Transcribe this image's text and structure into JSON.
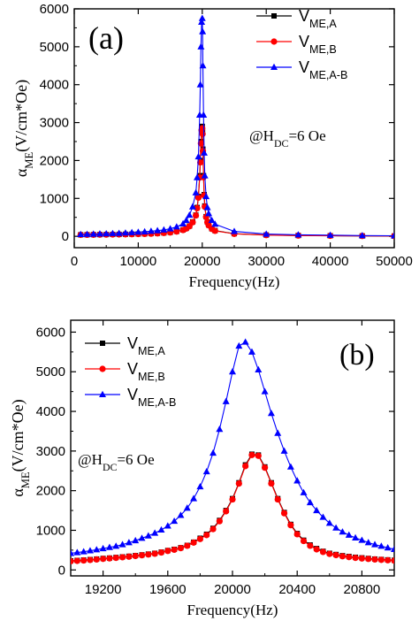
{
  "chart_data": [
    {
      "type": "line",
      "panel_label": "(a)",
      "xlabel": "Frequency(Hz)",
      "ylabel": "α_ME(V/cm*Oe)",
      "xlim": [
        0,
        50000
      ],
      "ylim": [
        -300,
        6000
      ],
      "xticks": [
        0,
        10000,
        20000,
        30000,
        40000,
        50000
      ],
      "yticks": [
        0,
        1000,
        2000,
        3000,
        4000,
        5000,
        6000
      ],
      "annotation": "@H_DC=6 Oe",
      "legend_position": "top-right",
      "series": [
        {
          "name": "V_ME,A",
          "color": "#000000",
          "marker": "square",
          "x": [
            1000,
            2000,
            3000,
            4000,
            5000,
            6000,
            7000,
            8000,
            9000,
            10000,
            11000,
            12000,
            13000,
            14000,
            15000,
            16000,
            17000,
            17500,
            18000,
            18500,
            19000,
            19200,
            19400,
            19600,
            19700,
            19800,
            19900,
            20000,
            20050,
            20100,
            20200,
            20300,
            20400,
            20600,
            20800,
            21000,
            21500,
            22000,
            25000,
            30000,
            35000,
            40000,
            45000,
            50000
          ],
          "y": [
            40,
            42,
            44,
            46,
            48,
            50,
            52,
            55,
            58,
            62,
            66,
            72,
            80,
            90,
            105,
            130,
            170,
            210,
            270,
            380,
            560,
            760,
            1050,
            1600,
            2000,
            2500,
            2850,
            2900,
            2750,
            2300,
            1600,
            1100,
            800,
            520,
            380,
            300,
            200,
            150,
            70,
            35,
            22,
            15,
            10,
            8
          ]
        },
        {
          "name": "V_ME,B",
          "color": "#ff0000",
          "marker": "circle",
          "x": [
            1000,
            2000,
            3000,
            4000,
            5000,
            6000,
            7000,
            8000,
            9000,
            10000,
            11000,
            12000,
            13000,
            14000,
            15000,
            16000,
            17000,
            17500,
            18000,
            18500,
            19000,
            19200,
            19400,
            19600,
            19700,
            19800,
            19900,
            20000,
            20050,
            20100,
            20200,
            20300,
            20400,
            20600,
            20800,
            21000,
            21500,
            22000,
            25000,
            30000,
            35000,
            40000,
            45000,
            50000
          ],
          "y": [
            38,
            40,
            42,
            44,
            46,
            48,
            50,
            53,
            56,
            60,
            64,
            70,
            78,
            88,
            102,
            126,
            165,
            205,
            265,
            370,
            550,
            740,
            1020,
            1550,
            1950,
            2450,
            2800,
            2850,
            2700,
            2250,
            1560,
            1080,
            780,
            510,
            370,
            290,
            195,
            145,
            65,
            32,
            20,
            14,
            9,
            7
          ]
        },
        {
          "name": "V_ME,A-B",
          "color": "#0000ff",
          "marker": "triangle",
          "x": [
            1000,
            2000,
            3000,
            4000,
            5000,
            6000,
            7000,
            8000,
            9000,
            10000,
            11000,
            12000,
            13000,
            14000,
            15000,
            16000,
            17000,
            17500,
            18000,
            18500,
            19000,
            19200,
            19400,
            19600,
            19700,
            19800,
            19900,
            20000,
            20050,
            20100,
            20200,
            20300,
            20400,
            20600,
            20800,
            21000,
            21500,
            22000,
            25000,
            30000,
            35000,
            40000,
            45000,
            50000
          ],
          "y": [
            50,
            55,
            60,
            65,
            70,
            75,
            80,
            90,
            100,
            110,
            120,
            135,
            150,
            170,
            200,
            250,
            330,
            420,
            560,
            780,
            1150,
            1550,
            2100,
            3200,
            4000,
            5000,
            5650,
            5750,
            5400,
            4500,
            3200,
            2200,
            1600,
            1050,
            760,
            600,
            420,
            320,
            130,
            60,
            40,
            30,
            20,
            15
          ]
        }
      ]
    },
    {
      "type": "line",
      "panel_label": "(b)",
      "xlabel": "Frequency(Hz)",
      "ylabel": "α_ME(V/cm*Oe)",
      "xlim": [
        19000,
        21000
      ],
      "ylim": [
        -150,
        6300
      ],
      "xticks": [
        19200,
        19600,
        20000,
        20400,
        20800
      ],
      "yticks": [
        0,
        1000,
        2000,
        3000,
        4000,
        5000,
        6000
      ],
      "annotation": "@H_DC=6 Oe",
      "legend_position": "top-left",
      "series": [
        {
          "name": "V_ME,A",
          "color": "#000000",
          "marker": "square",
          "x": [
            19000,
            19040,
            19080,
            19120,
            19160,
            19200,
            19240,
            19280,
            19320,
            19360,
            19400,
            19440,
            19480,
            19520,
            19560,
            19600,
            19640,
            19680,
            19720,
            19760,
            19800,
            19840,
            19880,
            19920,
            19960,
            20000,
            20040,
            20080,
            20120,
            20160,
            20200,
            20240,
            20280,
            20320,
            20360,
            20400,
            20440,
            20480,
            20520,
            20560,
            20600,
            20640,
            20680,
            20720,
            20760,
            20800,
            20840,
            20880,
            20920,
            20960,
            21000
          ],
          "y": [
            230,
            240,
            250,
            262,
            275,
            290,
            300,
            315,
            330,
            345,
            362,
            380,
            400,
            420,
            450,
            490,
            520,
            560,
            620,
            700,
            800,
            900,
            1050,
            1250,
            1500,
            1800,
            2200,
            2650,
            2920,
            2900,
            2600,
            2200,
            1800,
            1450,
            1150,
            920,
            750,
            630,
            540,
            470,
            420,
            390,
            360,
            340,
            320,
            305,
            290,
            275,
            265,
            255,
            245
          ]
        },
        {
          "name": "V_ME,B",
          "color": "#ff0000",
          "marker": "circle",
          "x": [
            19000,
            19040,
            19080,
            19120,
            19160,
            19200,
            19240,
            19280,
            19320,
            19360,
            19400,
            19440,
            19480,
            19520,
            19560,
            19600,
            19640,
            19680,
            19720,
            19760,
            19800,
            19840,
            19880,
            19920,
            19960,
            20000,
            20040,
            20080,
            20120,
            20160,
            20200,
            20240,
            20280,
            20320,
            20360,
            20400,
            20440,
            20480,
            20520,
            20560,
            20600,
            20640,
            20680,
            20720,
            20760,
            20800,
            20840,
            20880,
            20920,
            20960,
            21000
          ],
          "y": [
            220,
            230,
            240,
            252,
            265,
            280,
            292,
            305,
            320,
            335,
            352,
            370,
            390,
            410,
            440,
            480,
            510,
            550,
            610,
            690,
            780,
            880,
            1030,
            1230,
            1480,
            1780,
            2180,
            2620,
            2900,
            2880,
            2580,
            2180,
            1780,
            1430,
            1130,
            900,
            730,
            610,
            520,
            455,
            405,
            375,
            345,
            325,
            305,
            290,
            278,
            265,
            255,
            245,
            235
          ]
        },
        {
          "name": "V_ME,A-B",
          "color": "#0000ff",
          "marker": "triangle",
          "x": [
            19000,
            19040,
            19080,
            19120,
            19160,
            19200,
            19240,
            19280,
            19320,
            19360,
            19400,
            19440,
            19480,
            19520,
            19560,
            19600,
            19640,
            19680,
            19720,
            19760,
            19800,
            19840,
            19880,
            19920,
            19960,
            20000,
            20040,
            20080,
            20120,
            20160,
            20200,
            20240,
            20280,
            20320,
            20360,
            20400,
            20440,
            20480,
            20520,
            20560,
            20600,
            20640,
            20680,
            20720,
            20760,
            20800,
            20840,
            20880,
            20920,
            20960,
            21000
          ],
          "y": [
            420,
            440,
            460,
            485,
            510,
            540,
            570,
            600,
            640,
            690,
            740,
            800,
            860,
            930,
            1010,
            1110,
            1230,
            1380,
            1560,
            1800,
            2100,
            2480,
            2950,
            3550,
            4250,
            5000,
            5650,
            5750,
            5500,
            5050,
            4500,
            3950,
            3450,
            3000,
            2600,
            2250,
            1950,
            1700,
            1500,
            1330,
            1180,
            1060,
            960,
            880,
            810,
            750,
            690,
            640,
            600,
            560,
            520
          ]
        }
      ]
    }
  ]
}
